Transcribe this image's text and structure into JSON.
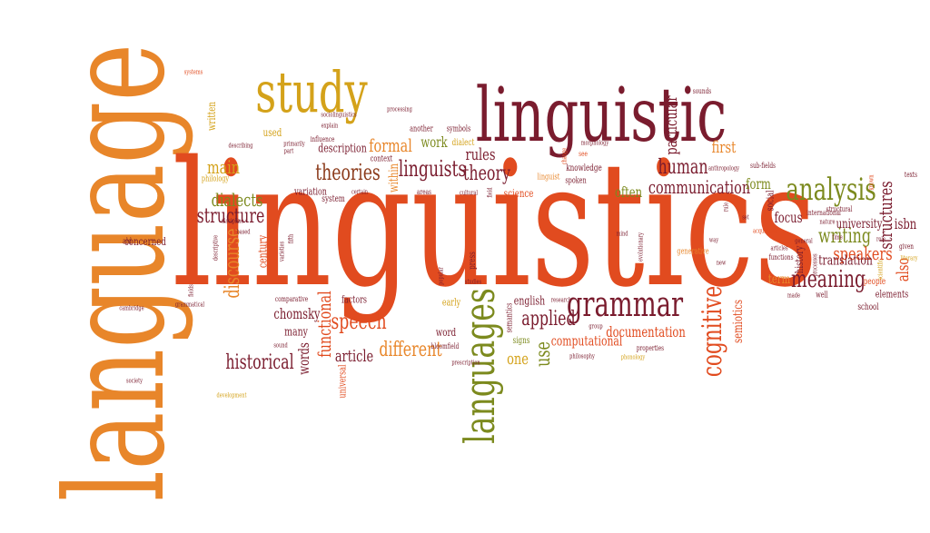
{
  "colors": {
    "orange": "#e8862a",
    "red_orange": "#e14b1f",
    "maroon": "#7a1c2e",
    "olive": "#7c8a1e",
    "gold": "#d4a21a",
    "brown": "#8b3a1a"
  },
  "words": {
    "language": "language",
    "linguistics": "linguistics",
    "linguistic": "linguistic",
    "study": "study",
    "languages": "languages",
    "grammar": "grammar",
    "analysis": "analysis",
    "cognitive": "cognitive",
    "meaning": "meaning",
    "theories": "theories",
    "linguists": "linguists",
    "theory": "theory",
    "structure": "structure",
    "discourse": "discourse",
    "speech": "speech",
    "historical": "historical",
    "different": "different",
    "applied": "applied",
    "human": "human",
    "communication": "communication",
    "writing": "writing",
    "speakers": "speakers",
    "structures": "structures",
    "formal": "formal",
    "rules": "rules",
    "dialects": "dialects",
    "main": "main",
    "functional": "functional",
    "article": "article",
    "use": "use",
    "one": "one",
    "chomsky": "chomsky",
    "words": "words",
    "first": "first",
    "particular": "particular",
    "documentation": "documentation",
    "computational": "computational",
    "semiotics": "semiotics",
    "translation": "translation",
    "university": "university",
    "also": "also",
    "isbn": "isbn",
    "focus": "focus",
    "often": "often",
    "form": "form",
    "term": "term",
    "work": "work",
    "written": "written",
    "used": "used",
    "description": "description",
    "concerned": "concerned",
    "century": "century",
    "variation": "variation",
    "system": "system",
    "within": "within",
    "factors": "factors",
    "early": "early",
    "english": "english",
    "many": "many",
    "word": "word",
    "signs": "signs",
    "universal": "universal",
    "science": "science",
    "school": "school",
    "elements": "elements",
    "people": "people",
    "history": "history",
    "social": "social",
    "context": "context",
    "another": "another",
    "knowledge": "knowledge",
    "dialect": "dialect",
    "symbols": "symbols",
    "press": "press",
    "semantics": "semantics",
    "generative": "generative",
    "bloomfield": "bloomfield",
    "properties": "properties",
    "philology": "philology",
    "influence": "influence",
    "explain": "explain",
    "processing": "processing",
    "sounds": "sounds",
    "systems": "systems",
    "see": "see",
    "change": "change",
    "morphology": "morphology",
    "sub_fields": "sub-fields",
    "anthropology": "anthropology",
    "international": "international",
    "nature": "nature",
    "general": "general",
    "articles": "articles",
    "functions": "functions",
    "acquisition": "acquisition",
    "known": "known",
    "texts": "texts",
    "given": "given",
    "literary": "literary",
    "role": "role",
    "structural": "structural",
    "processes": "processes",
    "time": "time",
    "scientific": "scientific",
    "well": "well",
    "made": "made",
    "areas": "areas",
    "field": "field",
    "cultural": "cultural",
    "spoken": "spoken",
    "linguist": "linguist",
    "comparative": "comparative",
    "cambridge": "cambridge",
    "society": "society",
    "development": "development",
    "sound": "sound",
    "studies": "studies",
    "popular": "popular",
    "prescription": "prescription",
    "philosophy": "philosophy",
    "research": "research",
    "group": "group",
    "phonology": "phonology",
    "evolutionary": "evolutionary",
    "mind": "mind",
    "based": "based",
    "descriptive": "descriptive",
    "fields": "fields",
    "grammatical": "grammatical",
    "ald": "ald",
    "describing": "describing",
    "discipline": "discipline",
    "sociolinguistics": "sociolinguistics",
    "primarily": "primarily",
    "part": "part",
    "certain": "certain",
    "fifth": "fifth",
    "varieties": "varieties",
    "anthem": "anthem",
    "set": "set",
    "way": "way",
    "meanings": "meanings",
    "literary2": "literary",
    "rule": "rule",
    "new": "new",
    "particularly": "particularly"
  }
}
